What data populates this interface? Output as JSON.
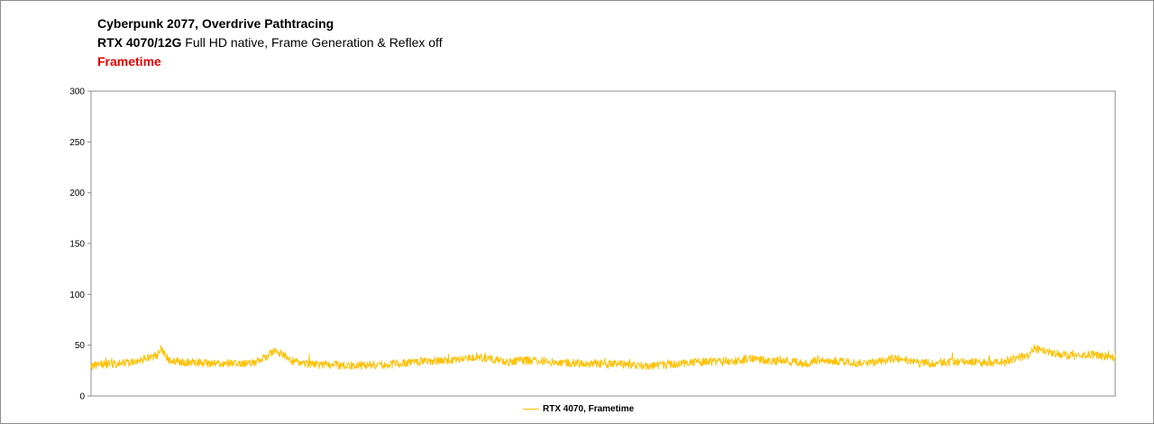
{
  "header": {
    "title": "Cyberpunk 2077, Overdrive Pathtracing",
    "subtitle_bold": "RTX 4070/12G",
    "subtitle_rest": "Full HD native, Frame Generation & Reflex off",
    "metric": "Frametime"
  },
  "colors": {
    "series": "#ffc000",
    "metric_label": "#e60000",
    "axis": "#8c8c8c"
  },
  "chart_data": {
    "type": "line",
    "title": "Cyberpunk 2077, Overdrive Pathtracing",
    "subtitle": "RTX 4070/12G Full HD native, Frame Generation & Reflex off",
    "xlabel": "",
    "ylabel": "",
    "ylim": [
      0,
      300
    ],
    "yticks": [
      "300",
      "250",
      "200",
      "150",
      "100",
      "50",
      "0"
    ],
    "grid": false,
    "legend_position": "bottom-center",
    "series": [
      {
        "name": "RTX 4070, Frametime",
        "color": "#ffc000",
        "noise_amplitude": 4,
        "trend": [
          [
            0.0,
            30
          ],
          [
            0.04,
            33
          ],
          [
            0.065,
            40
          ],
          [
            0.068,
            48
          ],
          [
            0.072,
            40
          ],
          [
            0.078,
            34
          ],
          [
            0.12,
            32
          ],
          [
            0.16,
            33
          ],
          [
            0.17,
            38
          ],
          [
            0.178,
            44
          ],
          [
            0.188,
            41
          ],
          [
            0.195,
            35
          ],
          [
            0.215,
            31
          ],
          [
            0.26,
            30
          ],
          [
            0.29,
            31
          ],
          [
            0.32,
            34
          ],
          [
            0.34,
            35
          ],
          [
            0.36,
            36
          ],
          [
            0.375,
            39
          ],
          [
            0.385,
            37
          ],
          [
            0.41,
            34
          ],
          [
            0.43,
            35
          ],
          [
            0.46,
            33
          ],
          [
            0.48,
            32
          ],
          [
            0.5,
            32
          ],
          [
            0.52,
            31
          ],
          [
            0.54,
            30
          ],
          [
            0.555,
            30
          ],
          [
            0.575,
            32
          ],
          [
            0.6,
            34
          ],
          [
            0.625,
            34
          ],
          [
            0.645,
            37
          ],
          [
            0.66,
            35
          ],
          [
            0.68,
            34
          ],
          [
            0.69,
            33
          ],
          [
            0.7,
            31
          ],
          [
            0.705,
            35
          ],
          [
            0.715,
            36
          ],
          [
            0.73,
            34
          ],
          [
            0.76,
            32
          ],
          [
            0.775,
            35
          ],
          [
            0.79,
            37
          ],
          [
            0.81,
            32
          ],
          [
            0.85,
            34
          ],
          [
            0.87,
            33
          ],
          [
            0.89,
            34
          ],
          [
            0.905,
            38
          ],
          [
            0.915,
            40
          ],
          [
            0.92,
            47
          ],
          [
            0.935,
            44
          ],
          [
            0.945,
            41
          ],
          [
            0.96,
            39
          ],
          [
            0.975,
            41
          ],
          [
            1.0,
            38
          ]
        ]
      }
    ]
  }
}
